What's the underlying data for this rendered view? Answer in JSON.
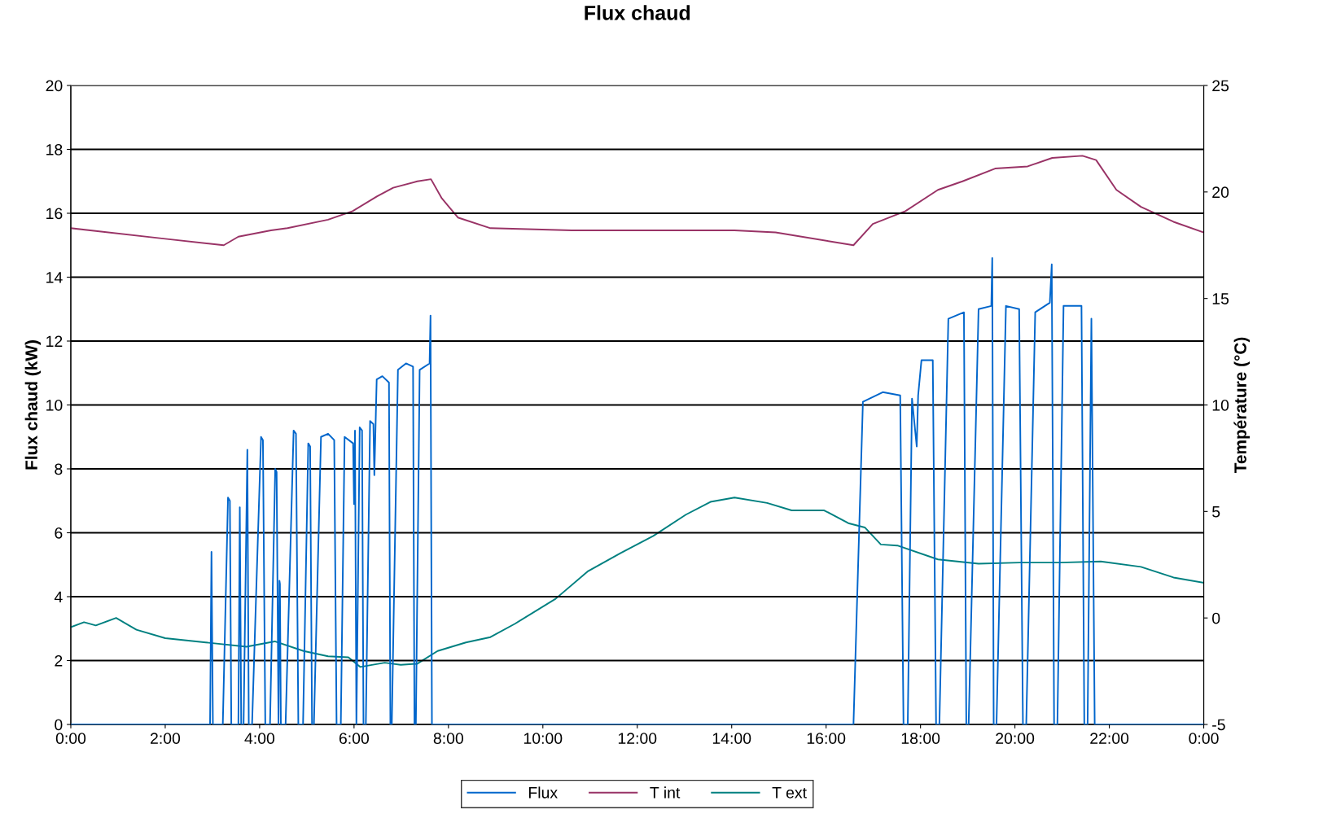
{
  "chart_data": {
    "type": "line",
    "title": "Flux chaud",
    "ylabel": "Flux chaud (kW)",
    "y2label": "Température (°C)",
    "xlim": [
      0,
      24
    ],
    "xticks": [
      {
        "value": 0,
        "label": "0:00"
      },
      {
        "value": 2,
        "label": "2:00"
      },
      {
        "value": 4,
        "label": "4:00"
      },
      {
        "value": 6,
        "label": "6:00"
      },
      {
        "value": 8,
        "label": "8:00"
      },
      {
        "value": 10,
        "label": "10:00"
      },
      {
        "value": 12,
        "label": "12:00"
      },
      {
        "value": 14,
        "label": "14:00"
      },
      {
        "value": 16,
        "label": "16:00"
      },
      {
        "value": 18,
        "label": "18:00"
      },
      {
        "value": 20,
        "label": "20:00"
      },
      {
        "value": 22,
        "label": "22:00"
      },
      {
        "value": 24,
        "label": "0:00"
      }
    ],
    "ylim": [
      0,
      20
    ],
    "yticks": [
      0,
      2,
      4,
      6,
      8,
      10,
      12,
      14,
      16,
      18,
      20
    ],
    "y2lim": [
      -5,
      25
    ],
    "y2ticks": [
      -5,
      0,
      5,
      10,
      15,
      20,
      25
    ],
    "grid": "y",
    "legend": "bottom",
    "marker": "none",
    "line_style": "solid",
    "series": [
      {
        "name": "Flux",
        "color": "#0066cc",
        "x": [
          0,
          2.95,
          2.98,
          3.01,
          3.22,
          3.33,
          3.37,
          3.4,
          3.55,
          3.58,
          3.61,
          3.66,
          3.74,
          3.77,
          3.84,
          4.03,
          4.07,
          4.12,
          4.22,
          4.33,
          4.36,
          4.4,
          4.42,
          4.43,
          4.45,
          4.55,
          4.72,
          4.77,
          4.82,
          4.92,
          5.03,
          5.07,
          5.11,
          5.15,
          5.3,
          5.45,
          5.58,
          5.63,
          5.72,
          5.8,
          5.98,
          6.0,
          6.02,
          6.05,
          6.12,
          6.17,
          6.2,
          6.25,
          6.34,
          6.41,
          6.43,
          6.48,
          6.6,
          6.74,
          6.77,
          6.8,
          6.93,
          7.1,
          7.25,
          7.28,
          7.31,
          7.39,
          7.6,
          7.62,
          7.65,
          16.58,
          16.78,
          17.2,
          17.57,
          17.64,
          17.73,
          17.82,
          17.92,
          17.95,
          18.02,
          18.26,
          18.33,
          18.4,
          18.59,
          18.92,
          18.97,
          19.02,
          19.23,
          19.5,
          19.52,
          19.55,
          19.61,
          19.81,
          20.09,
          20.17,
          20.24,
          20.43,
          20.74,
          20.78,
          20.83,
          20.9,
          21.03,
          21.41,
          21.47,
          21.54,
          21.62,
          21.69,
          24
        ],
        "values": [
          0,
          0,
          5.4,
          0,
          0,
          7.1,
          7.0,
          0,
          0,
          6.8,
          0,
          0,
          8.6,
          0,
          0,
          9.0,
          8.9,
          0,
          0,
          8.0,
          7.9,
          0,
          4.5,
          4.4,
          0,
          0,
          9.2,
          9.1,
          0,
          0,
          8.8,
          8.7,
          0,
          0,
          9.0,
          9.1,
          8.9,
          0,
          0,
          9.0,
          8.8,
          6.9,
          9.2,
          0,
          9.3,
          9.2,
          0,
          0,
          9.5,
          9.4,
          7.8,
          10.8,
          10.9,
          10.7,
          0,
          0,
          11.1,
          11.3,
          11.2,
          0,
          0,
          11.1,
          11.3,
          12.8,
          0,
          0,
          10.1,
          10.4,
          10.3,
          0,
          0,
          10.2,
          8.7,
          10.3,
          11.4,
          11.4,
          0,
          0,
          12.7,
          12.9,
          0,
          0,
          13.0,
          13.1,
          14.6,
          0,
          0,
          13.1,
          13.0,
          0,
          0,
          12.9,
          13.2,
          14.4,
          0,
          0,
          13.1,
          13.1,
          0,
          0,
          12.7,
          0,
          0
        ]
      },
      {
        "name": "T int",
        "color": "#993366",
        "axis": "y2",
        "x": [
          0,
          2.0,
          3.24,
          3.55,
          4.24,
          4.59,
          5.45,
          5.97,
          6.49,
          6.83,
          7.34,
          7.63,
          7.86,
          8.2,
          8.89,
          10.61,
          12.34,
          14.06,
          14.93,
          16.58,
          16.99,
          17.68,
          18.37,
          18.89,
          19.58,
          20.27,
          20.79,
          21.43,
          21.72,
          22.15,
          22.67,
          23.36,
          24
        ],
        "values": [
          18.3,
          17.8,
          17.5,
          17.9,
          18.2,
          18.3,
          18.7,
          19.1,
          19.8,
          20.2,
          20.5,
          20.6,
          19.7,
          18.8,
          18.3,
          18.2,
          18.2,
          18.2,
          18.1,
          17.5,
          18.5,
          19.1,
          20.1,
          20.5,
          21.1,
          21.2,
          21.6,
          21.7,
          21.5,
          20.1,
          19.3,
          18.6,
          18.1
        ]
      },
      {
        "name": "T ext",
        "color": "#008080",
        "axis": "y2",
        "x": [
          0,
          0.28,
          0.53,
          0.96,
          1.39,
          2.0,
          2.86,
          3.72,
          4.32,
          4.93,
          5.45,
          5.88,
          6.13,
          6.65,
          6.99,
          7.34,
          7.77,
          8.37,
          8.89,
          9.41,
          10.27,
          10.96,
          11.65,
          12.34,
          13.03,
          13.55,
          14.06,
          14.75,
          15.27,
          15.96,
          16.47,
          16.82,
          17.16,
          17.51,
          18.37,
          19.23,
          20.1,
          20.96,
          21.82,
          22.67,
          23.36,
          24
        ],
        "values": [
          -0.43,
          -0.2,
          -0.35,
          0.0,
          -0.55,
          -0.95,
          -1.15,
          -1.35,
          -1.1,
          -1.55,
          -1.8,
          -1.85,
          -2.3,
          -2.1,
          -2.2,
          -2.15,
          -1.55,
          -1.15,
          -0.9,
          -0.27,
          0.9,
          2.2,
          3.05,
          3.85,
          4.85,
          5.45,
          5.65,
          5.4,
          5.05,
          5.05,
          4.45,
          4.25,
          3.45,
          3.4,
          2.75,
          2.55,
          2.6,
          2.6,
          2.65,
          2.4,
          1.9,
          1.65
        ]
      }
    ]
  }
}
